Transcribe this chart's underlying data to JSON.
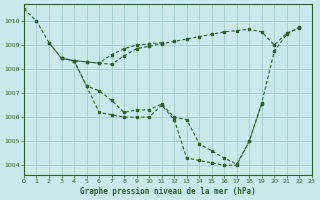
{
  "bg_color": "#c8eaea",
  "line_color": "#2d5f2d",
  "grid_color": "#a8d0d0",
  "xlabel": "Graphe pression niveau de la mer (hPa)",
  "xlim": [
    0,
    23
  ],
  "ylim": [
    1003.6,
    1010.7
  ],
  "yticks": [
    1004,
    1005,
    1006,
    1007,
    1008,
    1009,
    1010
  ],
  "xticks": [
    0,
    1,
    2,
    3,
    4,
    5,
    6,
    7,
    8,
    9,
    10,
    11,
    12,
    13,
    14,
    15,
    16,
    17,
    18,
    19,
    20,
    21,
    22,
    23
  ],
  "series": [
    {
      "x": [
        0,
        1,
        2,
        3,
        4,
        5,
        6,
        7,
        8,
        9,
        10,
        11,
        12,
        13,
        14,
        15,
        16,
        17,
        18,
        19,
        20,
        21,
        22
      ],
      "y": [
        1010.5,
        1010.0,
        1009.1,
        1008.45,
        1008.35,
        1008.3,
        1008.25,
        1008.2,
        1008.55,
        1008.85,
        1008.95,
        1009.05,
        1009.15,
        1009.25,
        1009.35,
        1009.45,
        1009.55,
        1009.6,
        1009.65,
        1009.55,
        1009.0,
        1009.5,
        1009.7
      ]
    },
    {
      "x": [
        2,
        3,
        4,
        5,
        6,
        7,
        8,
        9,
        10,
        11
      ],
      "y": [
        1009.1,
        1008.45,
        1008.35,
        1008.3,
        1008.25,
        1008.6,
        1008.85,
        1009.0,
        1009.05,
        1009.1
      ]
    },
    {
      "x": [
        3,
        4,
        5,
        6,
        7,
        8,
        9,
        10,
        11,
        12,
        13,
        14,
        15,
        16,
        17,
        18,
        19
      ],
      "y": [
        1008.45,
        1008.35,
        1007.3,
        1007.1,
        1006.7,
        1006.2,
        1006.3,
        1006.3,
        1006.55,
        1006.0,
        1005.9,
        1004.9,
        1004.6,
        1004.3,
        1004.05,
        1005.0,
        1006.55
      ]
    },
    {
      "x": [
        4,
        5,
        6,
        7,
        8,
        9,
        10,
        11,
        12,
        13,
        14,
        15,
        16,
        17,
        18,
        19,
        20,
        21,
        22
      ],
      "y": [
        1008.35,
        1007.3,
        1006.2,
        1006.1,
        1006.0,
        1006.0,
        1006.0,
        1006.5,
        1005.9,
        1004.3,
        1004.2,
        1004.1,
        1004.0,
        1004.0,
        1005.0,
        1006.6,
        1008.75,
        1009.45,
        1009.75
      ]
    }
  ]
}
